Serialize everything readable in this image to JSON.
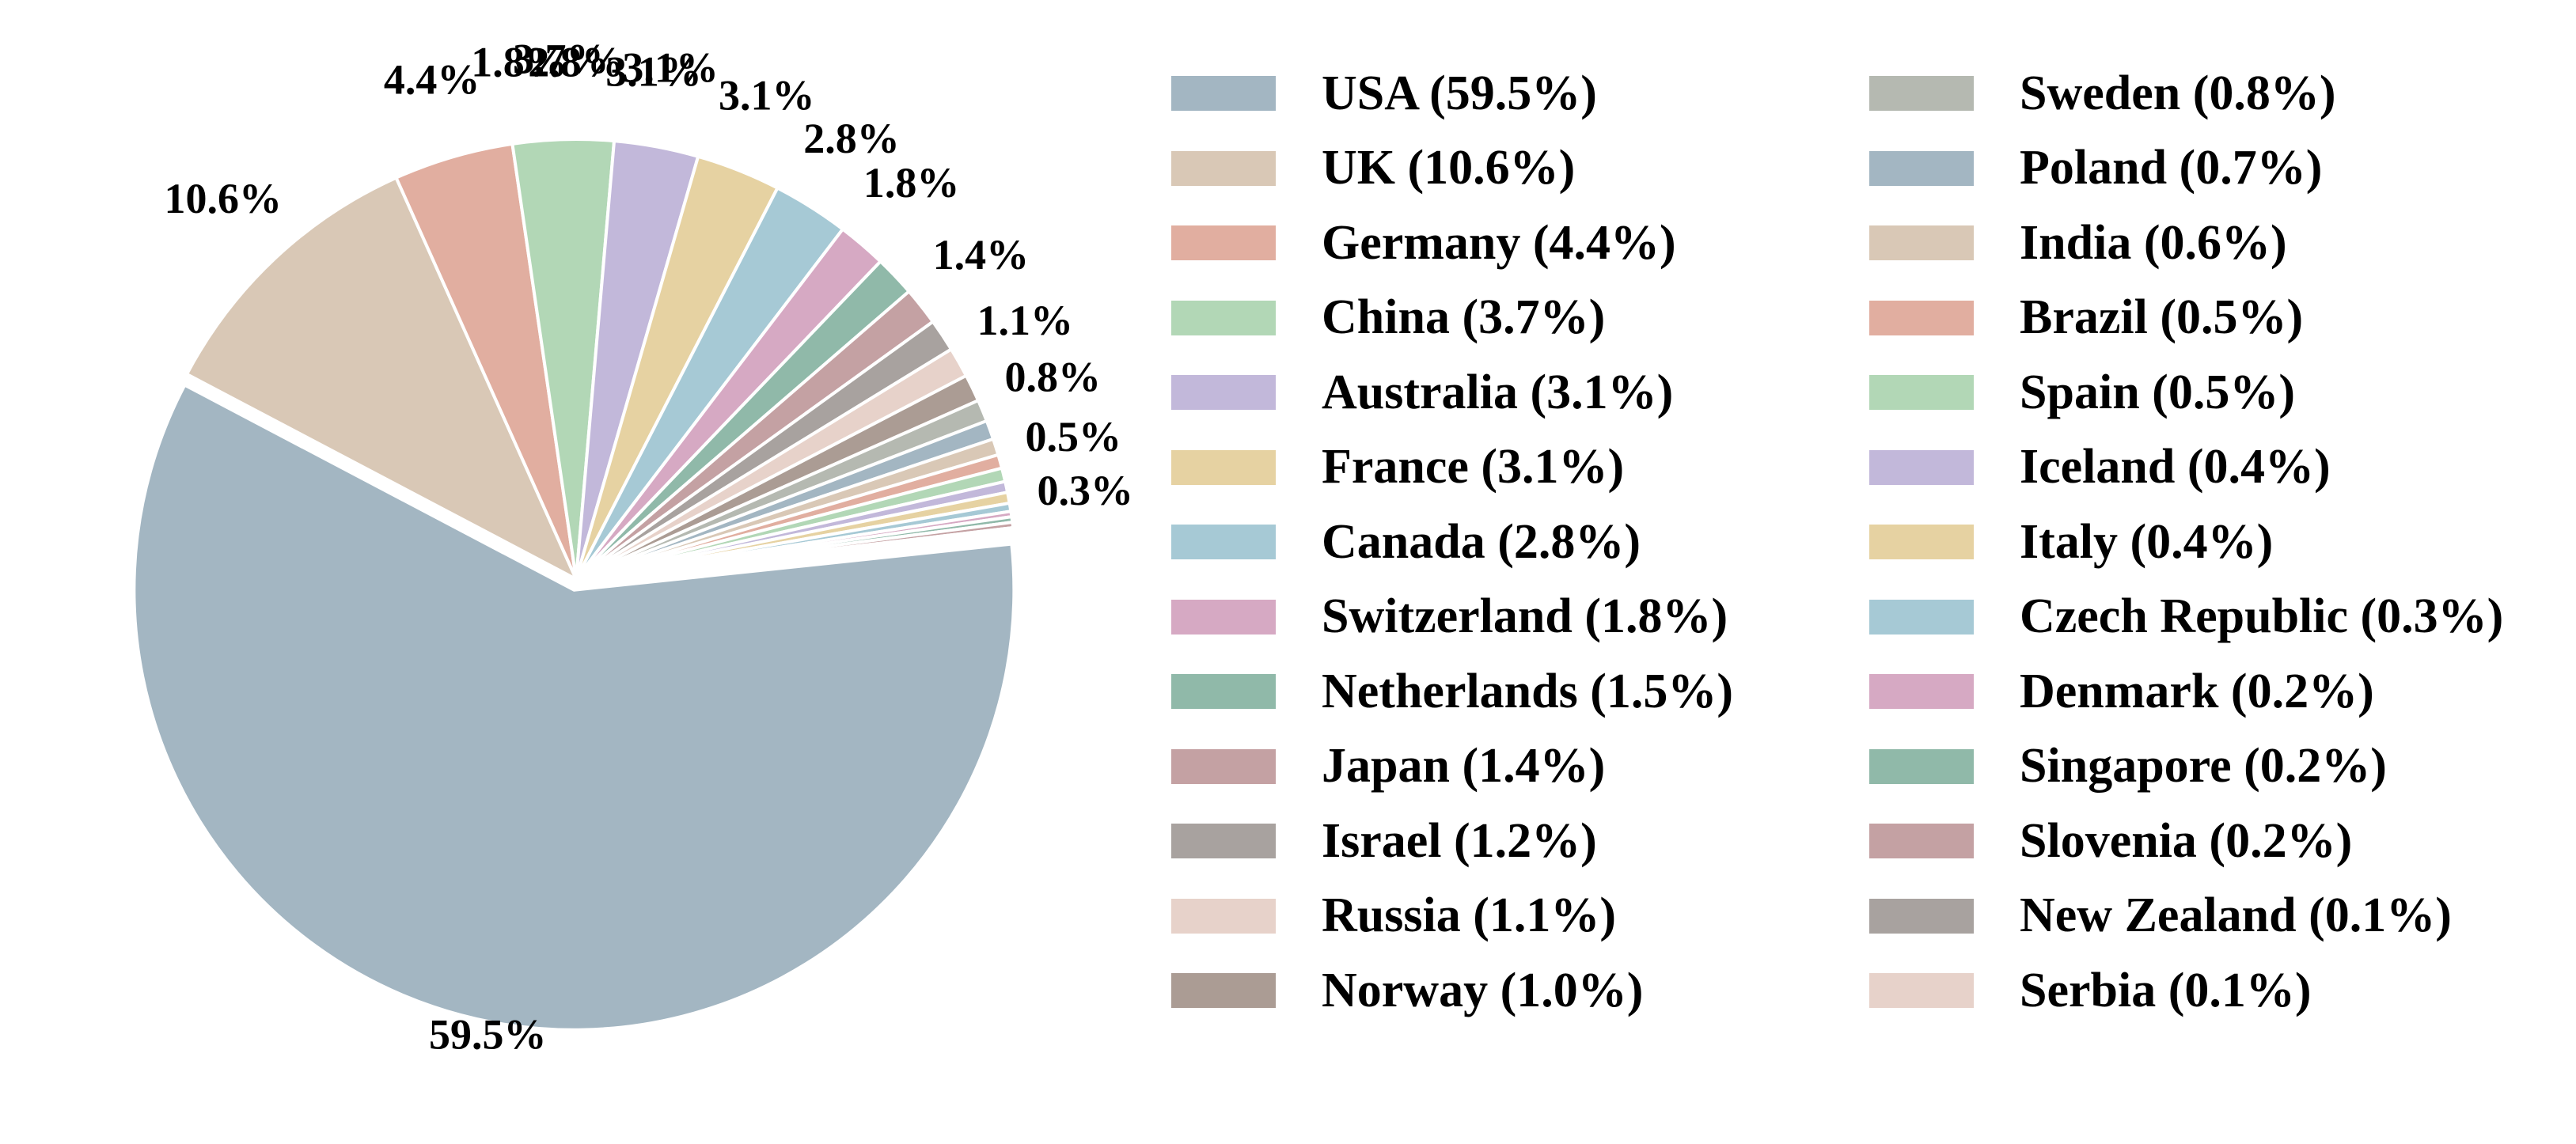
{
  "chart_data": {
    "type": "pie",
    "title": "",
    "slices": [
      {
        "label": "USA",
        "value": 59.5,
        "legend": "USA (59.5%)",
        "pct_label": "59.5%",
        "color": "#a3b6c2",
        "explode": true
      },
      {
        "label": "UK",
        "value": 10.6,
        "legend": "UK (10.6%)",
        "pct_label": "10.6%",
        "color": "#d9c8b6"
      },
      {
        "label": "Germany",
        "value": 4.4,
        "legend": "Germany (4.4%)",
        "pct_label": "4.4%",
        "color": "#e1aea0"
      },
      {
        "label": "China",
        "value": 3.7,
        "legend": "China (3.7%)",
        "pct_label": "3.7%",
        "color": "#b2d7b6"
      },
      {
        "label": "Australia",
        "value": 3.1,
        "legend": "Australia (3.1%)",
        "pct_label": "3.1%",
        "color": "#c2b8da"
      },
      {
        "label": "France",
        "value": 3.1,
        "legend": "France (3.1%)",
        "pct_label": "3.1%",
        "color": "#e6d2a2"
      },
      {
        "label": "Canada",
        "value": 2.8,
        "legend": "Canada (2.8%)",
        "pct_label": "2.8%",
        "color": "#a6c9d5"
      },
      {
        "label": "Switzerland",
        "value": 1.8,
        "legend": "Switzerland (1.8%)",
        "pct_label": "1.8%",
        "color": "#d6a9c3"
      },
      {
        "label": "Netherlands",
        "value": 1.5,
        "legend": "Netherlands (1.5%)",
        "pct_label": "",
        "color": "#90b9a9"
      },
      {
        "label": "Japan",
        "value": 1.4,
        "legend": "Japan (1.4%)",
        "pct_label": "1.4%",
        "color": "#c4a1a3"
      },
      {
        "label": "Israel",
        "value": 1.2,
        "legend": "Israel (1.2%)",
        "pct_label": "",
        "color": "#a8a29f"
      },
      {
        "label": "Russia",
        "value": 1.1,
        "legend": "Russia (1.1%)",
        "pct_label": "1.1%",
        "color": "#e7d2ca"
      },
      {
        "label": "Norway",
        "value": 1.0,
        "legend": "Norway (1.0%)",
        "pct_label": "",
        "color": "#ab9c94"
      },
      {
        "label": "Sweden",
        "value": 0.8,
        "legend": "Sweden (0.8%)",
        "pct_label": "0.8%",
        "color": "#b5b9b1"
      },
      {
        "label": "Poland",
        "value": 0.7,
        "legend": "Poland (0.7%)",
        "pct_label": "",
        "color": "#a3b6c2"
      },
      {
        "label": "India",
        "value": 0.6,
        "legend": "India (0.6%)",
        "pct_label": "",
        "color": "#d9c8b6"
      },
      {
        "label": "Brazil",
        "value": 0.5,
        "legend": "Brazil (0.5%)",
        "pct_label": "0.5%",
        "color": "#e1aea0"
      },
      {
        "label": "Spain",
        "value": 0.5,
        "legend": "Spain (0.5%)",
        "pct_label": "",
        "color": "#b2d7b6"
      },
      {
        "label": "Iceland",
        "value": 0.4,
        "legend": "Iceland (0.4%)",
        "pct_label": "",
        "color": "#c2b8da"
      },
      {
        "label": "Italy",
        "value": 0.4,
        "legend": "Italy (0.4%)",
        "pct_label": "",
        "color": "#e6d2a2"
      },
      {
        "label": "Czech Republic",
        "value": 0.3,
        "legend": "Czech Republic (0.3%)",
        "pct_label": "0.3%",
        "color": "#a6c9d5"
      },
      {
        "label": "Denmark",
        "value": 0.2,
        "legend": "Denmark (0.2%)",
        "pct_label": "",
        "color": "#d6a9c3"
      },
      {
        "label": "Singapore",
        "value": 0.2,
        "legend": "Singapore (0.2%)",
        "pct_label": "",
        "color": "#90b9a9"
      },
      {
        "label": "Slovenia",
        "value": 0.2,
        "legend": "Slovenia (0.2%)",
        "pct_label": "",
        "color": "#c4a1a3"
      },
      {
        "label": "New Zealand",
        "value": 0.1,
        "legend": "New Zealand (0.1%)",
        "pct_label": "",
        "color": "#a8a29f"
      },
      {
        "label": "Serbia",
        "value": 0.1,
        "legend": "Serbia (0.1%)",
        "pct_label": "",
        "color": "#e7d2ca"
      }
    ],
    "extra_labels": [
      "2.8%",
      "1.8%",
      "3.1%"
    ],
    "legend_placement": "right",
    "legend_columns": 2
  }
}
